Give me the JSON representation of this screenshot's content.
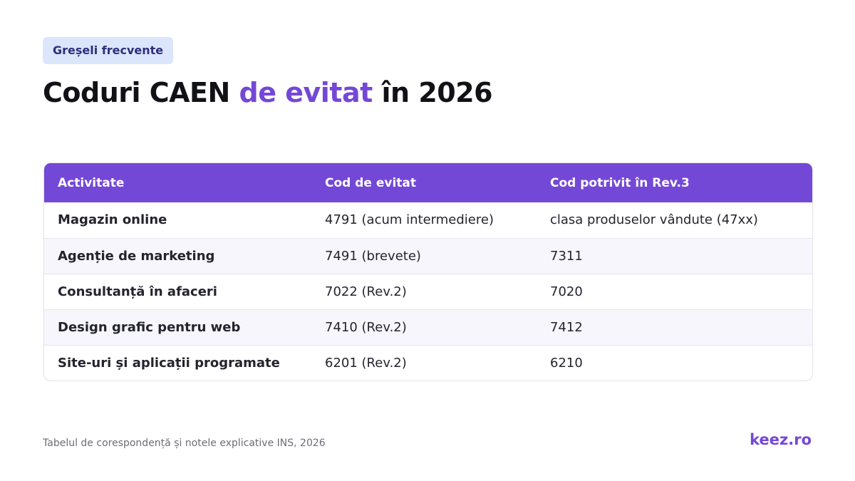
{
  "badge": "Greșeli frecvente",
  "title": {
    "part1": "Coduri CAEN ",
    "accent": "de evitat",
    "part2": " în 2026"
  },
  "table": {
    "headers": [
      "Activitate",
      "Cod de evitat",
      "Cod potrivit în Rev.3"
    ],
    "rows": [
      [
        "Magazin online",
        "4791 (acum intermediere)",
        "clasa produselor vândute (47xx)"
      ],
      [
        "Agenție de marketing",
        "7491 (brevete)",
        "7311"
      ],
      [
        "Consultanță în afaceri",
        "7022 (Rev.2)",
        "7020"
      ],
      [
        "Design grafic pentru web",
        "7410 (Rev.2)",
        "7412"
      ],
      [
        "Site-uri și aplicații programate",
        "6201 (Rev.2)",
        "6210"
      ]
    ]
  },
  "footer": {
    "source": "Tabelul de corespondență și notele explicative INS, 2026",
    "brand": "keez.ro"
  },
  "colors": {
    "accent": "#7448d6",
    "badge_bg": "#dbe5fb",
    "title_text": "#111118"
  }
}
